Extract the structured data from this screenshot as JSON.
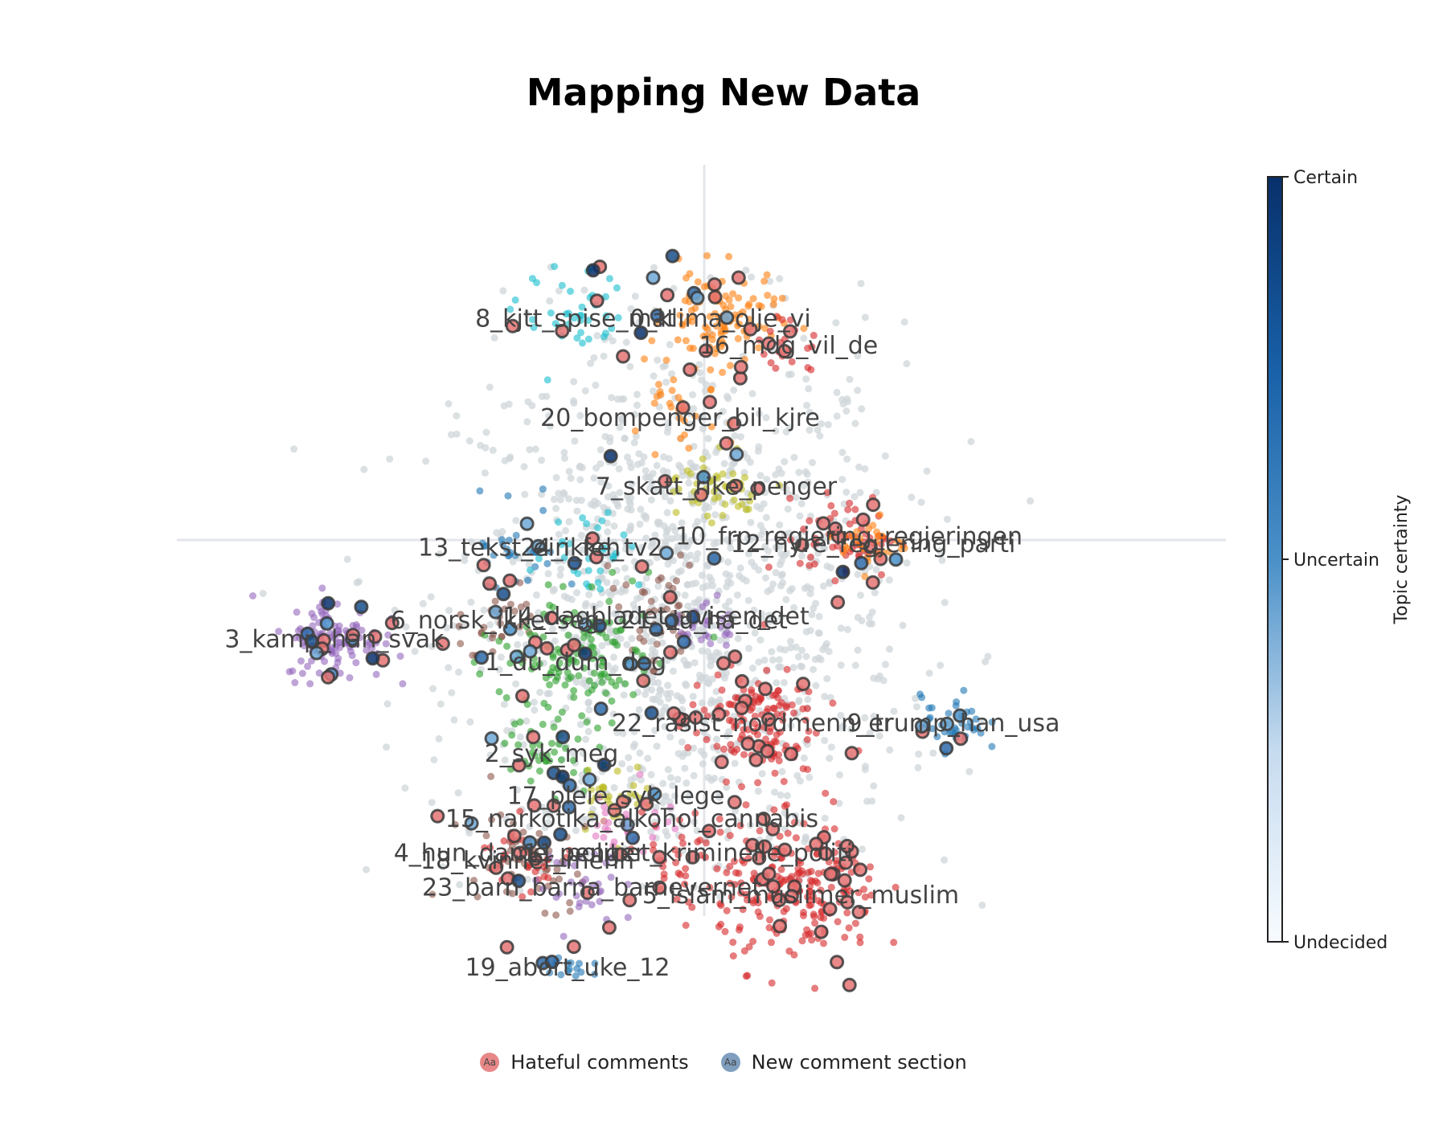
{
  "chart_data": {
    "type": "scatter",
    "title": "Mapping New Data",
    "colorbar": {
      "title": "Topic certainty",
      "tick_labels": [
        "Certain",
        "Uncertain",
        "Undecided"
      ],
      "colors": [
        "#08306b",
        "#4a90c8",
        "#f7fbff"
      ]
    },
    "legend": {
      "placement": "bottom-center",
      "items": [
        {
          "name": "Hateful comments",
          "marker": "Aa",
          "color": "#e57373"
        },
        {
          "name": "New comment section",
          "marker": "Aa",
          "color": "#6a8fb5"
        }
      ]
    },
    "grid": false,
    "topics": [
      {
        "label": "0_klima_olje_vi",
        "color": "#ff7f0e",
        "x": 0.2,
        "y": 6.9,
        "spread": 0.35,
        "n": 110
      },
      {
        "label": "16_mdg_vil_de",
        "color": "#d62728",
        "x": 1.05,
        "y": 6.55,
        "spread": 0.2,
        "n": 20
      },
      {
        "label": "8_kjtt_spise_mat",
        "color": "#17becf",
        "x": -1.6,
        "y": 6.9,
        "spread": 0.35,
        "n": 40
      },
      {
        "label": "20_bompenger_bil_kjre",
        "color": "#ff7f0e",
        "x": -0.3,
        "y": 5.6,
        "spread": 0.3,
        "n": 30
      },
      {
        "label": "7_skatt_rike_penger",
        "color": "#bcbd22",
        "x": 0.15,
        "y": 4.7,
        "spread": 0.25,
        "n": 50
      },
      {
        "label": "10_frp_regjering_regjeringen",
        "color": "#d62728",
        "x": 1.8,
        "y": 4.05,
        "spread": 0.3,
        "n": 60
      },
      {
        "label": "12_hyre_regjering_parti",
        "color": "#ff7f0e",
        "x": 2.1,
        "y": 3.95,
        "spread": 0.2,
        "n": 30
      },
      {
        "label": "13_tekst_ein_feh",
        "color": "#1f77b4",
        "x": -2.3,
        "y": 3.9,
        "spread": 0.3,
        "n": 30
      },
      {
        "label": "24_ikke_tv2",
        "color": "#17becf",
        "x": -1.4,
        "y": 3.9,
        "spread": 0.3,
        "n": 30
      },
      {
        "label": "3_kamp_han_svak",
        "color": "#9467bd",
        "x": -4.6,
        "y": 2.7,
        "spread": 0.3,
        "n": 110
      },
      {
        "label": "6_norsk_ikke_seg",
        "color": "#8c564b",
        "x": -2.6,
        "y": 2.95,
        "spread": 0.3,
        "n": 30
      },
      {
        "label": "14_dagbladet_avisen_det",
        "color": "#8c564b",
        "x": -0.6,
        "y": 3.0,
        "spread": 0.3,
        "n": 40
      },
      {
        "label": "21_du_ha_det",
        "color": "#9467bd",
        "x": 0.0,
        "y": 2.95,
        "spread": 0.25,
        "n": 30
      },
      {
        "label": "1_du_dum_deg",
        "color": "#2ca02c",
        "x": -1.6,
        "y": 2.4,
        "spread": 0.45,
        "n": 130
      },
      {
        "label": "22_rasist_nordmenn_er",
        "color": "#d62728",
        "x": 0.6,
        "y": 1.6,
        "spread": 0.4,
        "n": 130
      },
      {
        "label": "9_trump_han_usa",
        "color": "#1f77b4",
        "x": 3.1,
        "y": 1.6,
        "spread": 0.2,
        "n": 40
      },
      {
        "label": "2_syk_meg",
        "color": "#2ca02c",
        "x": -1.9,
        "y": 1.2,
        "spread": 0.3,
        "n": 40
      },
      {
        "label": "17_pleie_syk_lege",
        "color": "#bcbd22",
        "x": -1.1,
        "y": 0.65,
        "spread": 0.25,
        "n": 30
      },
      {
        "label": "15_narkotika_alkohol_cannabis",
        "color": "#e377c2",
        "x": -0.9,
        "y": 0.35,
        "spread": 0.25,
        "n": 30
      },
      {
        "label": "4_hun_dame_penger",
        "color": "#8c564b",
        "x": -2.3,
        "y": -0.1,
        "spread": 0.35,
        "n": 60
      },
      {
        "label": "11_politiet_kriminelle_politi",
        "color": "#d62728",
        "x": -0.2,
        "y": -0.1,
        "spread": 0.35,
        "n": 40
      },
      {
        "label": "18_kvinner_menn",
        "color": "#d62728",
        "x": -2.2,
        "y": -0.2,
        "spread": 0.3,
        "n": 30
      },
      {
        "label": "23_barn_barna_barnevernet",
        "color": "#9467bd",
        "x": -1.4,
        "y": -0.55,
        "spread": 0.3,
        "n": 30
      },
      {
        "label": "5_islam_muslimer_muslim",
        "color": "#d62728",
        "x": 1.2,
        "y": -0.65,
        "spread": 0.5,
        "n": 200
      },
      {
        "label": "19_abort_uke_12",
        "color": "#1f77b4",
        "x": -1.7,
        "y": -1.6,
        "spread": 0.15,
        "n": 15
      }
    ]
  }
}
